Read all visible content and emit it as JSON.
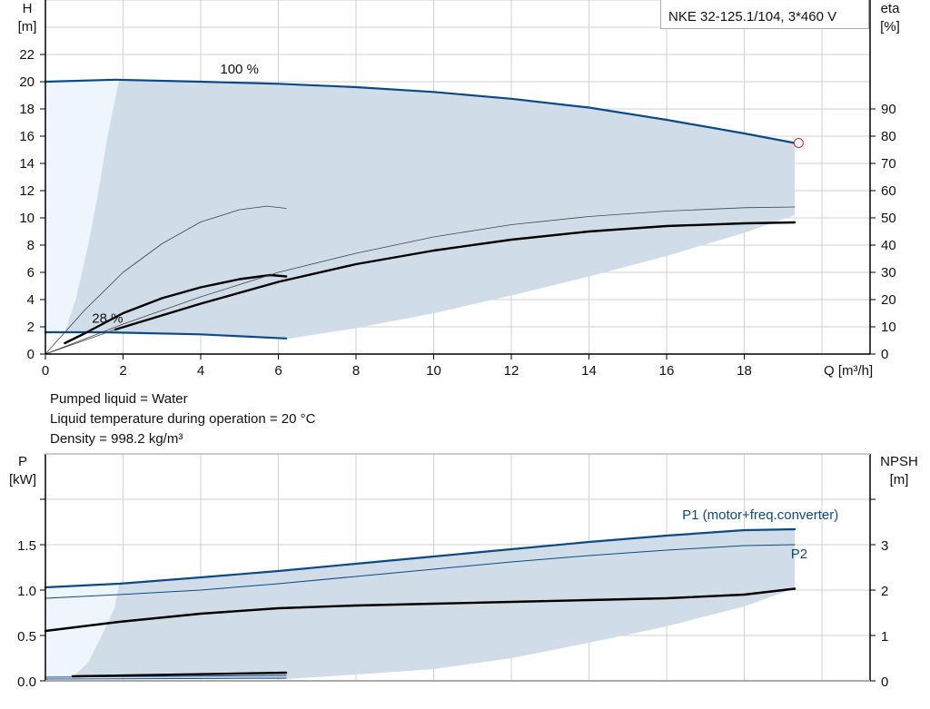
{
  "title": "NKE 32-125.1/104, 3*460 V",
  "info": [
    "Pumped liquid = Water",
    "Liquid temperature during operation = 20 °C",
    "Density = 998.2 kg/m³"
  ],
  "colors": {
    "area_main": "#d0dce8",
    "area_light": "#eef5fc",
    "blue": "#0b4a86",
    "black": "#000000",
    "grid": "#d0d0d0",
    "duty_point": "#e02020"
  },
  "chart_data": [
    {
      "type": "line",
      "xlabel": "Q [m³/h]",
      "ylabel_left": [
        "H",
        "[m]"
      ],
      "ylabel_right": [
        "eta",
        "[%]"
      ],
      "xlim": [
        0,
        21.3
      ],
      "ylim_left": [
        0,
        26
      ],
      "ylim_right": [
        0,
        130
      ],
      "xticks": [
        0,
        2,
        4,
        6,
        8,
        10,
        12,
        14,
        16,
        18
      ],
      "yticks_left": [
        0,
        2,
        4,
        6,
        8,
        10,
        12,
        14,
        16,
        18,
        20,
        22
      ],
      "yticks_right": [
        0,
        10,
        20,
        30,
        40,
        50,
        60,
        70,
        80,
        90
      ],
      "grid": true,
      "annotations": [
        {
          "text": "100 %",
          "q": 4.5,
          "h": 20.6
        },
        {
          "text": "28 %",
          "q": 1.2,
          "h": 2.3
        }
      ],
      "duty_point": {
        "q": 19.4,
        "h": 15.5
      },
      "areas": {
        "light": [
          [
            0,
            1.6
          ],
          [
            0,
            20.0
          ],
          [
            1.9,
            20.15
          ],
          [
            1.6,
            16
          ],
          [
            1.37,
            12
          ],
          [
            1.1,
            8
          ],
          [
            0.78,
            4
          ],
          [
            0.5,
            1.6
          ]
        ],
        "main": [
          [
            0.5,
            1.6
          ],
          [
            0.78,
            4
          ],
          [
            1.1,
            8
          ],
          [
            1.37,
            12
          ],
          [
            1.6,
            16
          ],
          [
            1.9,
            20.15
          ],
          [
            4,
            20.0
          ],
          [
            6,
            19.85
          ],
          [
            8,
            19.6
          ],
          [
            10,
            19.25
          ],
          [
            12,
            18.75
          ],
          [
            14,
            18.1
          ],
          [
            16,
            17.2
          ],
          [
            18,
            16.2
          ],
          [
            19.3,
            15.5
          ],
          [
            19.3,
            10.2
          ],
          [
            18,
            8.9
          ],
          [
            16,
            7.2
          ],
          [
            14,
            5.7
          ],
          [
            12,
            4.3
          ],
          [
            10,
            3.0
          ],
          [
            8,
            1.9
          ],
          [
            6.2,
            1.1
          ],
          [
            4,
            1.45
          ],
          [
            1.5,
            1.6
          ]
        ]
      },
      "series": [
        {
          "axis": "H",
          "style": "blue-thick",
          "points": [
            [
              0,
              20.0
            ],
            [
              1.8,
              20.15
            ],
            [
              4,
              20.0
            ],
            [
              6,
              19.85
            ],
            [
              8,
              19.6
            ],
            [
              10,
              19.25
            ],
            [
              12,
              18.75
            ],
            [
              14,
              18.1
            ],
            [
              16,
              17.2
            ],
            [
              18,
              16.2
            ],
            [
              19.3,
              15.5
            ]
          ]
        },
        {
          "axis": "H",
          "style": "blue-thick",
          "points": [
            [
              0,
              1.6
            ],
            [
              1.5,
              1.6
            ],
            [
              4,
              1.45
            ],
            [
              6.2,
              1.15
            ]
          ]
        },
        {
          "axis": "eta",
          "style": "gray-thin",
          "points": [
            [
              0,
              0
            ],
            [
              1,
              16
            ],
            [
              2,
              30
            ],
            [
              3,
              40.5
            ],
            [
              4,
              48.5
            ],
            [
              5,
              53
            ],
            [
              5.7,
              54.3
            ],
            [
              6.2,
              53.5
            ]
          ]
        },
        {
          "axis": "eta",
          "style": "black-thick",
          "points": [
            [
              0.5,
              4
            ],
            [
              1,
              7.5
            ],
            [
              2,
              15
            ],
            [
              3,
              20.5
            ],
            [
              4,
              24.5
            ],
            [
              5,
              27.5
            ],
            [
              5.8,
              29
            ],
            [
              6.2,
              28.5
            ]
          ]
        },
        {
          "axis": "eta",
          "style": "gray-thin",
          "points": [
            [
              0,
              0
            ],
            [
              2,
              11
            ],
            [
              4,
              21
            ],
            [
              6,
              30
            ],
            [
              8,
              37
            ],
            [
              10,
              43
            ],
            [
              12,
              47.5
            ],
            [
              14,
              50.5
            ],
            [
              16,
              52.5
            ],
            [
              18,
              53.75
            ],
            [
              19.3,
              54
            ]
          ]
        },
        {
          "axis": "eta",
          "style": "gray-thin",
          "points": [
            [
              0,
              0
            ],
            [
              1.8,
              9
            ]
          ]
        },
        {
          "axis": "eta",
          "style": "black-thick",
          "points": [
            [
              1.8,
              9
            ],
            [
              4,
              18.5
            ],
            [
              6,
              26.5
            ],
            [
              8,
              33
            ],
            [
              10,
              38
            ],
            [
              12,
              42
            ],
            [
              14,
              45
            ],
            [
              16,
              47
            ],
            [
              18,
              48
            ],
            [
              19.3,
              48.35
            ]
          ]
        }
      ]
    },
    {
      "type": "line",
      "ylabel_left": [
        "P",
        "[kW]"
      ],
      "ylabel_right": [
        "NPSH",
        "[m]"
      ],
      "xlim": [
        0,
        21.3
      ],
      "ylim_left": [
        0,
        2.5
      ],
      "ylim_right": [
        0,
        5
      ],
      "yticks_left": [
        0.0,
        0.5,
        1.0,
        1.5,
        2.0
      ],
      "yticks_left_labels": [
        "0.0",
        "0.5",
        "1.0",
        "1.5",
        ""
      ],
      "yticks_right": [
        0,
        1,
        2,
        3,
        4
      ],
      "yticks_right_labels": [
        "0",
        "1",
        "2",
        "3",
        ""
      ],
      "grid": true,
      "annotations": [
        {
          "text": "P1 (motor+freq.converter)",
          "q": 16.4,
          "p": 1.78
        },
        {
          "text": "P2",
          "q": 19.2,
          "p": 1.35
        }
      ],
      "areas": {
        "light": [
          [
            0,
            0.04
          ],
          [
            0,
            1.03
          ],
          [
            1.9,
            1.07
          ],
          [
            1.78,
            0.8
          ],
          [
            1.45,
            0.5
          ],
          [
            1.1,
            0.2
          ],
          [
            0.7,
            0.04
          ]
        ],
        "main": [
          [
            0.7,
            0.04
          ],
          [
            1.1,
            0.2
          ],
          [
            1.45,
            0.5
          ],
          [
            1.78,
            0.8
          ],
          [
            1.9,
            1.07
          ],
          [
            4,
            1.14
          ],
          [
            6,
            1.21
          ],
          [
            8,
            1.29
          ],
          [
            10,
            1.37
          ],
          [
            12,
            1.45
          ],
          [
            14,
            1.53
          ],
          [
            16,
            1.6
          ],
          [
            18,
            1.66
          ],
          [
            19.3,
            1.67
          ],
          [
            19.3,
            1.02
          ],
          [
            18,
            0.82
          ],
          [
            16,
            0.6
          ],
          [
            14,
            0.42
          ],
          [
            12,
            0.25
          ],
          [
            10,
            0.13
          ],
          [
            8,
            0.07
          ],
          [
            6.2,
            0.02
          ]
        ]
      },
      "series": [
        {
          "name": "P1 (motor+freq.converter)",
          "axis": "P",
          "style": "blue-thick",
          "points": [
            [
              0,
              1.03
            ],
            [
              1.9,
              1.07
            ],
            [
              4,
              1.14
            ],
            [
              6,
              1.21
            ],
            [
              8,
              1.29
            ],
            [
              10,
              1.37
            ],
            [
              12,
              1.45
            ],
            [
              14,
              1.53
            ],
            [
              16,
              1.6
            ],
            [
              18,
              1.66
            ],
            [
              19.3,
              1.67
            ]
          ]
        },
        {
          "name": "P2",
          "axis": "P",
          "style": "blue-thin",
          "points": [
            [
              0,
              0.91
            ],
            [
              1.9,
              0.95
            ],
            [
              4,
              1.0
            ],
            [
              6,
              1.07
            ],
            [
              8,
              1.15
            ],
            [
              10,
              1.23
            ],
            [
              12,
              1.31
            ],
            [
              14,
              1.38
            ],
            [
              16,
              1.44
            ],
            [
              18,
              1.49
            ],
            [
              19.3,
              1.5
            ]
          ]
        },
        {
          "axis": "NPSH",
          "style": "black-thick",
          "points": [
            [
              0,
              1.1
            ],
            [
              1.9,
              1.3
            ],
            [
              4,
              1.48
            ],
            [
              6,
              1.6
            ],
            [
              8,
              1.66
            ],
            [
              10,
              1.7
            ],
            [
              12,
              1.74
            ],
            [
              14,
              1.78
            ],
            [
              16,
              1.82
            ],
            [
              18,
              1.9
            ],
            [
              19.3,
              2.03
            ]
          ]
        },
        {
          "axis": "P",
          "style": "blue-thin",
          "points": [
            [
              0,
              0.04
            ],
            [
              6.2,
              0.06
            ]
          ]
        },
        {
          "axis": "P",
          "style": "blue-thin",
          "points": [
            [
              0,
              0.02
            ],
            [
              6.2,
              0.03
            ]
          ]
        },
        {
          "axis": "P",
          "style": "black-thick",
          "points": [
            [
              0.7,
              0.05
            ],
            [
              6.2,
              0.09
            ]
          ]
        }
      ]
    }
  ]
}
